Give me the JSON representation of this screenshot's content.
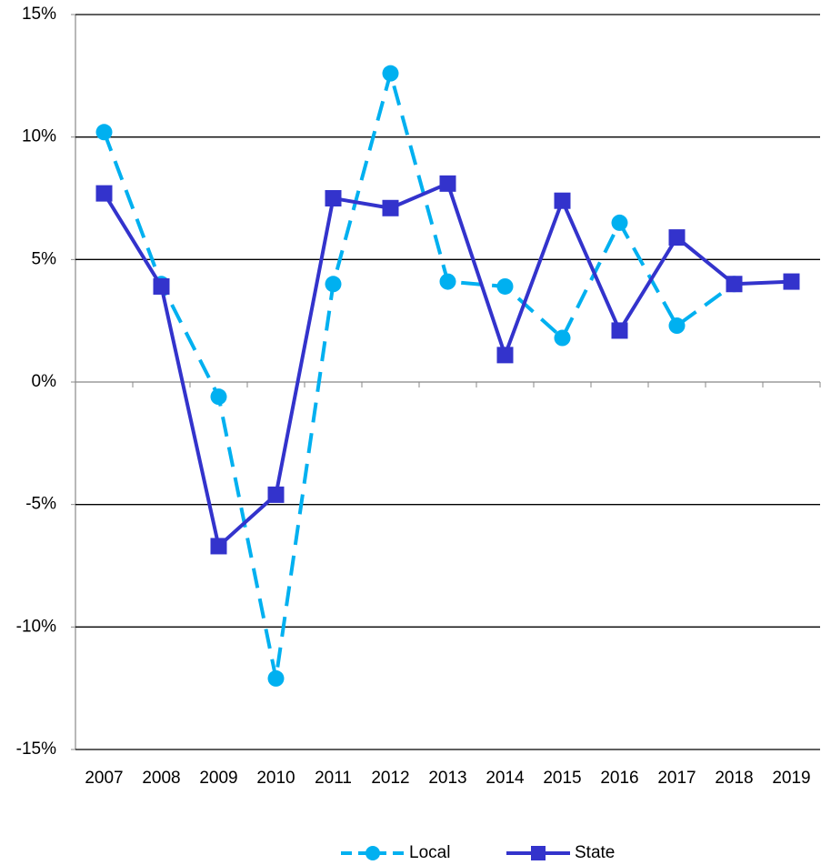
{
  "chart_data": {
    "type": "line",
    "categories": [
      "2007",
      "2008",
      "2009",
      "2010",
      "2011",
      "2012",
      "2013",
      "2014",
      "2015",
      "2016",
      "2017",
      "2018",
      "2019"
    ],
    "series": [
      {
        "name": "Local",
        "color": "#00b0f0",
        "dashed": true,
        "marker": "circle",
        "values": [
          10.2,
          4.0,
          -0.6,
          -12.1,
          4.0,
          12.6,
          4.1,
          3.9,
          1.8,
          6.5,
          2.3,
          4.0,
          null
        ]
      },
      {
        "name": "State",
        "color": "#3333cc",
        "dashed": false,
        "marker": "square",
        "values": [
          7.7,
          3.9,
          -6.7,
          -4.6,
          7.5,
          7.1,
          8.1,
          1.1,
          7.4,
          2.1,
          5.9,
          4.0,
          4.1
        ]
      }
    ],
    "ylim": [
      -15,
      15
    ],
    "yticks": [
      {
        "value": -15,
        "label": "-15%"
      },
      {
        "value": -10,
        "label": "-10%"
      },
      {
        "value": -5,
        "label": "-5%"
      },
      {
        "value": 0,
        "label": "0%"
      },
      {
        "value": 5,
        "label": "5%"
      },
      {
        "value": 10,
        "label": "10%"
      },
      {
        "value": 15,
        "label": "15%"
      }
    ],
    "grid": true,
    "legend": "bottom"
  }
}
